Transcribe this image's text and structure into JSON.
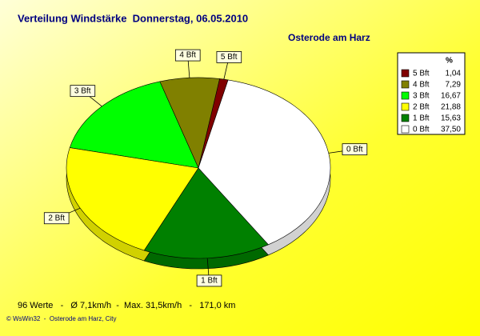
{
  "chart_data": {
    "type": "pie",
    "title": "Verteilung Windstärke  Donnerstag, 06.05.2010",
    "subtitle": "Osterode am Harz",
    "legend_title": "%",
    "categories": [
      "5 Bft",
      "4 Bft",
      "3 Bft",
      "2 Bft",
      "1 Bft",
      "0 Bft"
    ],
    "values": [
      1.04,
      7.29,
      16.67,
      21.88,
      15.63,
      37.5
    ],
    "value_labels": [
      "1,04",
      "7,29",
      "16,67",
      "21,88",
      "15,63",
      "37,50"
    ],
    "colors": [
      "#800000",
      "#808000",
      "#00ff00",
      "#ffff00",
      "#008000",
      "#ffffff"
    ],
    "legend": "top-right",
    "footer": "96 Werte   -   Ø 7,1km/h  -  Max. 31,5km/h   -   171,0 km",
    "credit": "© WsWin32  -  Osterode am Harz, City"
  }
}
